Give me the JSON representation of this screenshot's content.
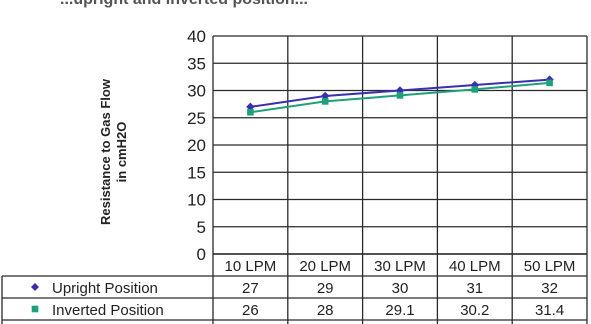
{
  "top_fragment": "...upright and inverted position...",
  "chart_data": {
    "type": "line",
    "ylabel_line1": "Resistance to Gas Flow",
    "ylabel_line2": "in cmH2O",
    "ylim": [
      0,
      40
    ],
    "yticks": [
      0,
      5,
      10,
      15,
      20,
      25,
      30,
      35,
      40
    ],
    "categories": [
      "10 LPM",
      "20 LPM",
      "30 LPM",
      "40 LPM",
      "50 LPM"
    ],
    "grid": true,
    "legend_placement": "data-table-left",
    "series": [
      {
        "name": "Upright Position",
        "color": "#3a2fb0",
        "marker": "diamond",
        "values": [
          27,
          29,
          30,
          31,
          32
        ],
        "labels": [
          "27",
          "29",
          "30",
          "31",
          "32"
        ]
      },
      {
        "name": "Inverted Position",
        "color": "#1fa07a",
        "marker": "square",
        "values": [
          26,
          28,
          29.1,
          30.2,
          31.4
        ],
        "labels": [
          "26",
          "28",
          "29.1",
          "30.2",
          "31.4"
        ]
      }
    ]
  }
}
